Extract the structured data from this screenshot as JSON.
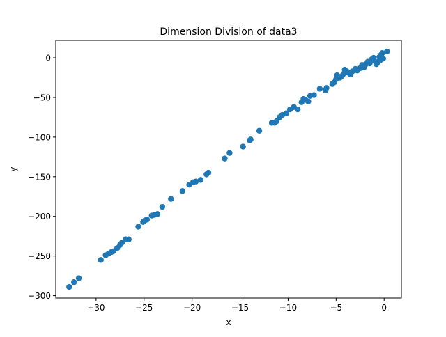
{
  "chart_data": {
    "type": "scatter",
    "title": "Dimension Division of data3",
    "xlabel": "x",
    "ylabel": "y",
    "xlim": [
      -34.2,
      1.8
    ],
    "ylim": [
      -303,
      22
    ],
    "xticks": [
      -30,
      -25,
      -20,
      -15,
      -10,
      -5,
      0
    ],
    "yticks": [
      0,
      -50,
      -100,
      -150,
      -200,
      -250,
      -300
    ],
    "grid": false,
    "legend": "none",
    "series": [
      {
        "color": "#1f77b4",
        "points": [
          [
            -32.8,
            -289
          ],
          [
            -32.3,
            -283
          ],
          [
            -31.8,
            -278
          ],
          [
            -29.5,
            -255
          ],
          [
            -29.0,
            -249
          ],
          [
            -28.7,
            -247
          ],
          [
            -28.4,
            -245
          ],
          [
            -28.2,
            -244
          ],
          [
            -27.8,
            -240
          ],
          [
            -27.5,
            -236
          ],
          [
            -27.3,
            -233
          ],
          [
            -26.9,
            -229
          ],
          [
            -26.6,
            -229
          ],
          [
            -25.6,
            -213
          ],
          [
            -25.1,
            -207
          ],
          [
            -24.9,
            -205
          ],
          [
            -24.7,
            -204
          ],
          [
            -24.2,
            -199
          ],
          [
            -23.9,
            -198
          ],
          [
            -23.6,
            -197
          ],
          [
            -23.1,
            -188
          ],
          [
            -22.2,
            -178
          ],
          [
            -21.0,
            -168
          ],
          [
            -20.3,
            -160
          ],
          [
            -19.9,
            -157
          ],
          [
            -19.6,
            -156
          ],
          [
            -19.1,
            -154
          ],
          [
            -18.5,
            -147
          ],
          [
            -18.3,
            -145
          ],
          [
            -16.6,
            -127
          ],
          [
            -16.1,
            -120
          ],
          [
            -14.7,
            -112
          ],
          [
            -14.0,
            -104
          ],
          [
            -13.9,
            -103
          ],
          [
            -13.0,
            -92
          ],
          [
            -11.7,
            -82
          ],
          [
            -11.4,
            -82
          ],
          [
            -11.2,
            -80
          ],
          [
            -10.9,
            -75
          ],
          [
            -10.6,
            -72
          ],
          [
            -10.2,
            -70
          ],
          [
            -9.8,
            -65
          ],
          [
            -9.4,
            -62
          ],
          [
            -9.0,
            -65
          ],
          [
            -8.6,
            -56
          ],
          [
            -8.4,
            -52
          ],
          [
            -8.2,
            -53
          ],
          [
            -7.9,
            -55
          ],
          [
            -7.7,
            -48
          ],
          [
            -7.3,
            -47
          ],
          [
            -6.7,
            -39
          ],
          [
            -6.1,
            -41
          ],
          [
            -6.0,
            -38
          ],
          [
            -5.4,
            -33
          ],
          [
            -5.2,
            -31
          ],
          [
            -5.0,
            -27
          ],
          [
            -4.9,
            -22
          ],
          [
            -4.6,
            -25
          ],
          [
            -4.4,
            -23
          ],
          [
            -4.2,
            -20
          ],
          [
            -4.1,
            -15
          ],
          [
            -3.9,
            -17
          ],
          [
            -3.7,
            -19
          ],
          [
            -3.5,
            -21
          ],
          [
            -3.3,
            -17
          ],
          [
            -3.0,
            -14
          ],
          [
            -2.8,
            -16
          ],
          [
            -2.5,
            -13
          ],
          [
            -2.3,
            -9
          ],
          [
            -2.1,
            -12
          ],
          [
            -1.9,
            -8
          ],
          [
            -1.7,
            -5
          ],
          [
            -1.5,
            -7
          ],
          [
            -1.3,
            -2
          ],
          [
            -1.1,
            0
          ],
          [
            -1.0,
            -4
          ],
          [
            -0.8,
            -8
          ],
          [
            -0.6,
            -5
          ],
          [
            -0.5,
            1
          ],
          [
            -0.4,
            -3
          ],
          [
            -0.3,
            4
          ],
          [
            -0.2,
            6
          ],
          [
            -0.1,
            -1
          ],
          [
            0.3,
            8
          ]
        ]
      }
    ]
  }
}
